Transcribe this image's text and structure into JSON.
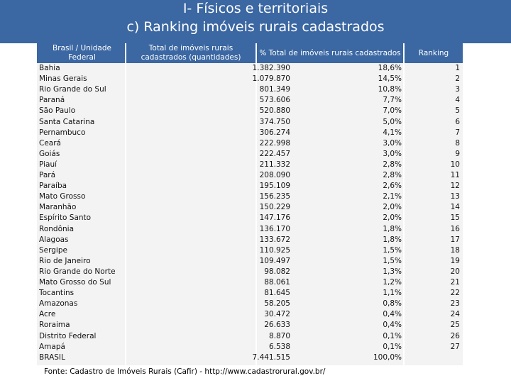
{
  "title_line1": "I- Físicos e territoriais",
  "title_line2": "c) Ranking imóveis rurais cadastrados",
  "headers": {
    "state": "Brasil / Unidade Federal",
    "total": "Total de imóveis rurais cadastrados (quantidades)",
    "percent": "% Total de imóveis rurais cadastrados",
    "ranking": "Ranking"
  },
  "rows": [
    {
      "name": "Bahia",
      "qty": "1.382.390",
      "pct": "18,6%",
      "rank": "1"
    },
    {
      "name": "Minas Gerais",
      "qty": "1.079.870",
      "pct": "14,5%",
      "rank": "2"
    },
    {
      "name": "Rio Grande do Sul",
      "qty": "801.349",
      "pct": "10,8%",
      "rank": "3"
    },
    {
      "name": "Paraná",
      "qty": "573.606",
      "pct": "7,7%",
      "rank": "4"
    },
    {
      "name": "São Paulo",
      "qty": "520.880",
      "pct": "7,0%",
      "rank": "5"
    },
    {
      "name": "Santa Catarina",
      "qty": "374.750",
      "pct": "5,0%",
      "rank": "6"
    },
    {
      "name": "Pernambuco",
      "qty": "306.274",
      "pct": "4,1%",
      "rank": "7"
    },
    {
      "name": "Ceará",
      "qty": "222.998",
      "pct": "3,0%",
      "rank": "8"
    },
    {
      "name": "Goiás",
      "qty": "222.457",
      "pct": "3,0%",
      "rank": "9"
    },
    {
      "name": "Piauí",
      "qty": "211.332",
      "pct": "2,8%",
      "rank": "10"
    },
    {
      "name": "Pará",
      "qty": "208.090",
      "pct": "2,8%",
      "rank": "11"
    },
    {
      "name": "Paraíba",
      "qty": "195.109",
      "pct": "2,6%",
      "rank": "12"
    },
    {
      "name": "Mato Grosso",
      "qty": "156.235",
      "pct": "2,1%",
      "rank": "13"
    },
    {
      "name": "Maranhão",
      "qty": "150.229",
      "pct": "2,0%",
      "rank": "14"
    },
    {
      "name": "Espírito Santo",
      "qty": "147.176",
      "pct": "2,0%",
      "rank": "15"
    },
    {
      "name": "Rondônia",
      "qty": "136.170",
      "pct": "1,8%",
      "rank": "16"
    },
    {
      "name": "Alagoas",
      "qty": "133.672",
      "pct": "1,8%",
      "rank": "17"
    },
    {
      "name": "Sergipe",
      "qty": "110.925",
      "pct": "1,5%",
      "rank": "18"
    },
    {
      "name": "Rio de Janeiro",
      "qty": "109.497",
      "pct": "1,5%",
      "rank": "19"
    },
    {
      "name": "Rio Grande do Norte",
      "qty": "98.082",
      "pct": "1,3%",
      "rank": "20"
    },
    {
      "name": "Mato Grosso do Sul",
      "qty": "88.061",
      "pct": "1,2%",
      "rank": "21"
    },
    {
      "name": "Tocantins",
      "qty": "81.645",
      "pct": "1,1%",
      "rank": "22"
    },
    {
      "name": "Amazonas",
      "qty": "58.205",
      "pct": "0,8%",
      "rank": "23"
    },
    {
      "name": "Acre",
      "qty": "30.472",
      "pct": "0,4%",
      "rank": "24"
    },
    {
      "name": "Roraima",
      "qty": "26.633",
      "pct": "0,4%",
      "rank": "25"
    },
    {
      "name": "Distrito Federal",
      "qty": "8.870",
      "pct": "0,1%",
      "rank": "26"
    },
    {
      "name": "Amapá",
      "qty": "6.538",
      "pct": "0,1%",
      "rank": "27"
    },
    {
      "name": "BRASIL",
      "qty": "7.441.515",
      "pct": "100,0%",
      "rank": ""
    }
  ],
  "source": "Fonte: Cadastro de Imóveis Rurais (Cafir)  - http://www.cadastrorural.gov.br/"
}
